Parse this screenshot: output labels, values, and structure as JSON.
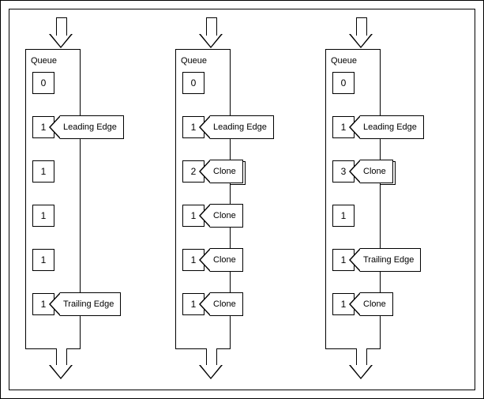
{
  "diagram": {
    "type": "flowchart",
    "background_color": "#ffffff",
    "border_color": "#000000",
    "font_family": "Arial",
    "label_fontsize": 11,
    "cell_fontsize": 12,
    "queue_label": "Queue",
    "queue_width": 70,
    "cell_size": 26,
    "cell_spacing": 28,
    "tag_labels": {
      "leading": "Leading Edge",
      "trailing": "Trailing Edge",
      "clone": "Clone"
    },
    "queues": [
      {
        "cells": [
          {
            "value": "0",
            "tag": null
          },
          {
            "value": "1",
            "tag": "leading"
          },
          {
            "value": "1",
            "tag": null
          },
          {
            "value": "1",
            "tag": null
          },
          {
            "value": "1",
            "tag": null
          },
          {
            "value": "1",
            "tag": "trailing"
          }
        ]
      },
      {
        "cells": [
          {
            "value": "0",
            "tag": null
          },
          {
            "value": "1",
            "tag": "leading"
          },
          {
            "value": "2",
            "tag": "clone",
            "stacked": true
          },
          {
            "value": "1",
            "tag": "clone"
          },
          {
            "value": "1",
            "tag": "clone"
          },
          {
            "value": "1",
            "tag": "clone"
          }
        ]
      },
      {
        "cells": [
          {
            "value": "0",
            "tag": null
          },
          {
            "value": "1",
            "tag": "leading"
          },
          {
            "value": "3",
            "tag": "clone",
            "stacked": true
          },
          {
            "value": "1",
            "tag": null
          },
          {
            "value": "1",
            "tag": "trailing"
          },
          {
            "value": "1",
            "tag": "clone"
          }
        ]
      }
    ]
  }
}
